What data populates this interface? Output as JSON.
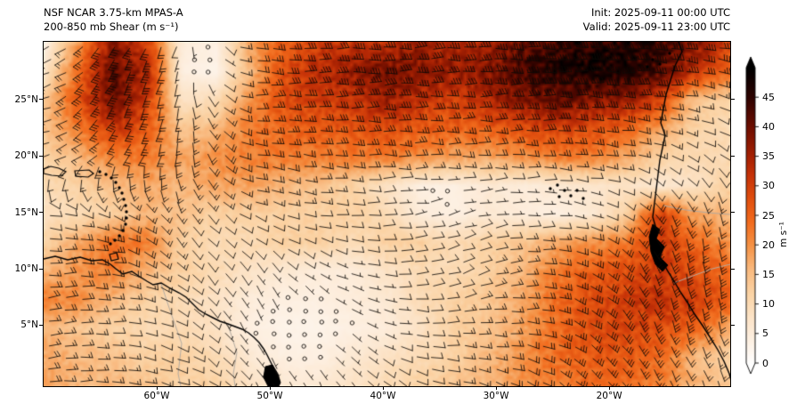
{
  "header": {
    "title_line1": "NSF NCAR 3.75-km MPAS-A",
    "title_line2": "200-850 mb Shear (m s⁻¹)",
    "init_label": "Init: 2025-09-11 00:00 UTC",
    "valid_label": "Valid: 2025-09-11 23:00 UTC"
  },
  "colors": {
    "background": "#ffffff",
    "text": "#000000",
    "coastline": "#000000",
    "interior_border": "#b3aba1",
    "barb": "#0d0a06"
  },
  "chart_data": {
    "type": "heatmap",
    "variable": "200-850 mb vertical wind shear magnitude with shear barbs",
    "units": "m s⁻¹",
    "lat_ticks": [
      "25°N",
      "20°N",
      "15°N",
      "10°N",
      "5°N"
    ],
    "lat_tick_values": [
      25,
      20,
      15,
      10,
      5
    ],
    "lon_ticks": [
      "60°W",
      "50°W",
      "40°W",
      "30°W",
      "20°W"
    ],
    "lon_tick_values": [
      -60,
      -50,
      -40,
      -30,
      -20
    ],
    "lon_range": [
      -70.0,
      -9.3
    ],
    "lat_range": [
      -0.4,
      30.1
    ],
    "grid_on": false,
    "colorbar": {
      "label": "m s⁻¹",
      "ticks": [
        0,
        5,
        10,
        15,
        20,
        25,
        30,
        35,
        40,
        45
      ],
      "vmin": 0,
      "vmax": 50,
      "extend": "both",
      "stops": [
        [
          0,
          "#ffffff"
        ],
        [
          4,
          "#fdf0e2"
        ],
        [
          8,
          "#fce3c6"
        ],
        [
          12,
          "#fbd3a4"
        ],
        [
          16,
          "#f9b97e"
        ],
        [
          20,
          "#f59245"
        ],
        [
          24,
          "#f26b1d"
        ],
        [
          28,
          "#e04e0e"
        ],
        [
          32,
          "#c53208"
        ],
        [
          35,
          "#a62103"
        ],
        [
          40,
          "#6e0e00"
        ],
        [
          45,
          "#2e0300"
        ],
        [
          50,
          "#000000"
        ]
      ]
    },
    "shear_grid_note": "approximate shear magnitude (m/s), 13 rows (30N to 0N) x 21 cols (70W to 9W)",
    "shear_grid": [
      [
        4,
        20,
        38,
        30,
        5,
        4,
        18,
        26,
        30,
        32,
        33,
        36,
        34,
        36,
        40,
        44,
        46,
        47,
        44,
        38,
        30
      ],
      [
        8,
        25,
        42,
        34,
        4,
        3,
        16,
        28,
        33,
        36,
        40,
        38,
        36,
        38,
        44,
        47,
        48,
        47,
        42,
        32,
        24
      ],
      [
        14,
        28,
        40,
        30,
        8,
        10,
        20,
        28,
        30,
        32,
        36,
        32,
        30,
        34,
        38,
        40,
        38,
        36,
        30,
        14,
        12
      ],
      [
        15,
        22,
        32,
        26,
        14,
        16,
        22,
        25,
        26,
        27,
        28,
        26,
        25,
        26,
        28,
        30,
        28,
        25,
        18,
        12,
        10
      ],
      [
        12,
        16,
        22,
        22,
        18,
        20,
        22,
        22,
        22,
        22,
        22,
        20,
        18,
        18,
        20,
        22,
        22,
        18,
        12,
        10,
        10
      ],
      [
        10,
        12,
        15,
        18,
        16,
        18,
        18,
        16,
        14,
        12,
        8,
        4,
        4,
        6,
        5,
        6,
        7,
        8,
        6,
        8,
        12
      ],
      [
        8,
        10,
        12,
        16,
        14,
        12,
        12,
        12,
        12,
        12,
        10,
        5,
        4,
        6,
        5,
        4,
        6,
        12,
        30,
        18,
        16
      ],
      [
        12,
        18,
        24,
        22,
        12,
        10,
        10,
        12,
        12,
        10,
        12,
        12,
        10,
        12,
        14,
        18,
        20,
        22,
        32,
        24,
        20
      ],
      [
        16,
        20,
        22,
        16,
        12,
        10,
        8,
        6,
        5,
        5,
        8,
        10,
        10,
        12,
        16,
        22,
        26,
        28,
        30,
        28,
        24
      ],
      [
        22,
        20,
        16,
        12,
        10,
        8,
        5,
        4,
        4,
        5,
        6,
        10,
        12,
        14,
        18,
        24,
        28,
        30,
        32,
        30,
        26
      ],
      [
        16,
        14,
        12,
        10,
        10,
        8,
        4,
        3,
        3,
        4,
        5,
        8,
        12,
        14,
        18,
        24,
        28,
        30,
        28,
        26,
        18
      ],
      [
        18,
        16,
        14,
        12,
        12,
        10,
        6,
        4,
        4,
        6,
        8,
        10,
        12,
        16,
        20,
        24,
        26,
        26,
        24,
        16,
        12
      ],
      [
        18,
        16,
        16,
        14,
        12,
        12,
        8,
        6,
        6,
        8,
        10,
        12,
        14,
        16,
        20,
        22,
        24,
        24,
        22,
        16,
        14
      ]
    ],
    "wind_dir_grid_note": "approximate barb pointing direction (deg, 0=N screen-up), 7 rows (30N to 0N) x 11 cols (70W to 9W)",
    "wind_dir_grid": [
      [
        250,
        215,
        195,
        95,
        90,
        88,
        90,
        88,
        90,
        92,
        100
      ],
      [
        255,
        210,
        190,
        92,
        90,
        88,
        88,
        90,
        92,
        95,
        110
      ],
      [
        260,
        220,
        185,
        100,
        95,
        92,
        90,
        92,
        95,
        110,
        130
      ],
      [
        95,
        110,
        150,
        115,
        100,
        85,
        75,
        85,
        105,
        150,
        170
      ],
      [
        85,
        95,
        130,
        150,
        120,
        95,
        70,
        80,
        120,
        160,
        175
      ],
      [
        80,
        90,
        115,
        155,
        140,
        105,
        85,
        95,
        125,
        155,
        165
      ],
      [
        85,
        95,
        110,
        145,
        155,
        125,
        105,
        115,
        135,
        150,
        160
      ]
    ],
    "coastlines": {
      "africa": [
        [
          762,
          47
        ],
        [
          766,
          58
        ],
        [
          758,
          74
        ],
        [
          753,
          90
        ],
        [
          748,
          106
        ],
        [
          745,
          122
        ],
        [
          742,
          138
        ],
        [
          747,
          152
        ],
        [
          744,
          166
        ],
        [
          741,
          180
        ],
        [
          739,
          196
        ],
        [
          737,
          212
        ],
        [
          735,
          228
        ],
        [
          733,
          244
        ],
        [
          736,
          254
        ],
        [
          732,
          262
        ],
        [
          735,
          272
        ],
        [
          739,
          283
        ],
        [
          744,
          294
        ],
        [
          750,
          305
        ],
        [
          757,
          316
        ],
        [
          764,
          328
        ],
        [
          772,
          340
        ],
        [
          780,
          353
        ],
        [
          789,
          366
        ],
        [
          798,
          380
        ],
        [
          806,
          393
        ],
        [
          813,
          406
        ],
        [
          819,
          420
        ],
        [
          822,
          432
        ]
      ],
      "south_america": [
        [
          49,
          291
        ],
        [
          62,
          288
        ],
        [
          76,
          292
        ],
        [
          90,
          289
        ],
        [
          103,
          293
        ],
        [
          115,
          292
        ],
        [
          124,
          297
        ],
        [
          130,
          302
        ],
        [
          138,
          308
        ],
        [
          148,
          305
        ],
        [
          157,
          311
        ],
        [
          165,
          316
        ],
        [
          172,
          320
        ],
        [
          181,
          318
        ],
        [
          191,
          324
        ],
        [
          201,
          329
        ],
        [
          209,
          334
        ],
        [
          216,
          341
        ],
        [
          223,
          348
        ],
        [
          231,
          353
        ],
        [
          239,
          357
        ],
        [
          247,
          361
        ],
        [
          256,
          364
        ],
        [
          264,
          367
        ],
        [
          272,
          370
        ],
        [
          279,
          374
        ],
        [
          285,
          379
        ],
        [
          291,
          385
        ],
        [
          296,
          392
        ],
        [
          300,
          399
        ],
        [
          304,
          407
        ],
        [
          308,
          415
        ],
        [
          310,
          423
        ],
        [
          312,
          434
        ]
      ],
      "hispaniola": [
        [
          49,
          190
        ],
        [
          57,
          187
        ],
        [
          66,
          189
        ],
        [
          74,
          193
        ],
        [
          69,
          198
        ],
        [
          58,
          197
        ],
        [
          49,
          195
        ]
      ],
      "puerto_rico": [
        [
          84,
          192
        ],
        [
          100,
          191
        ],
        [
          105,
          195
        ],
        [
          99,
          199
        ],
        [
          85,
          198
        ]
      ],
      "trinidad": [
        [
          123,
          286
        ],
        [
          131,
          284
        ],
        [
          133,
          291
        ],
        [
          125,
          293
        ]
      ],
      "antilles_dots": [
        [
          112,
          193
        ],
        [
          119,
          196
        ],
        [
          125,
          200
        ],
        [
          130,
          205
        ],
        [
          134,
          211
        ],
        [
          137,
          217
        ],
        [
          139,
          224
        ],
        [
          141,
          231
        ],
        [
          142,
          238
        ],
        [
          142,
          245
        ],
        [
          141,
          252
        ],
        [
          138,
          259
        ],
        [
          134,
          265
        ],
        [
          129,
          270
        ],
        [
          124,
          274
        ]
      ],
      "cape_verde_dots": [
        [
          618,
          212
        ],
        [
          626,
          208
        ],
        [
          634,
          214
        ],
        [
          641,
          220
        ],
        [
          648,
          214
        ],
        [
          628,
          221
        ],
        [
          655,
          223
        ]
      ],
      "canary_dots": [
        [
          733,
          67
        ],
        [
          741,
          72
        ],
        [
          727,
          75
        ],
        [
          752,
          60
        ]
      ],
      "guinea_fill": [
        [
          733,
          252
        ],
        [
          741,
          258
        ],
        [
          737,
          268
        ],
        [
          746,
          277
        ],
        [
          741,
          289
        ],
        [
          750,
          298
        ],
        [
          744,
          305
        ],
        [
          736,
          297
        ],
        [
          731,
          283
        ],
        [
          729,
          266
        ]
      ],
      "amazon_fill": [
        [
          298,
          412
        ],
        [
          306,
          410
        ],
        [
          312,
          420
        ],
        [
          315,
          430
        ],
        [
          313,
          434
        ],
        [
          301,
          434
        ],
        [
          296,
          424
        ]
      ],
      "interior_borders": [
        [
          [
            745,
            231
          ],
          [
            770,
            236
          ],
          [
            795,
            239
          ],
          [
            820,
            241
          ]
        ],
        [
          [
            757,
            318
          ],
          [
            778,
            310
          ],
          [
            800,
            302
          ],
          [
            820,
            297
          ]
        ],
        [
          [
            181,
            319
          ],
          [
            192,
            352
          ],
          [
            204,
            386
          ],
          [
            200,
            420
          ],
          [
            203,
            434
          ]
        ],
        [
          [
            256,
            365
          ],
          [
            266,
            396
          ],
          [
            262,
            420
          ],
          [
            264,
            434
          ]
        ]
      ]
    }
  }
}
